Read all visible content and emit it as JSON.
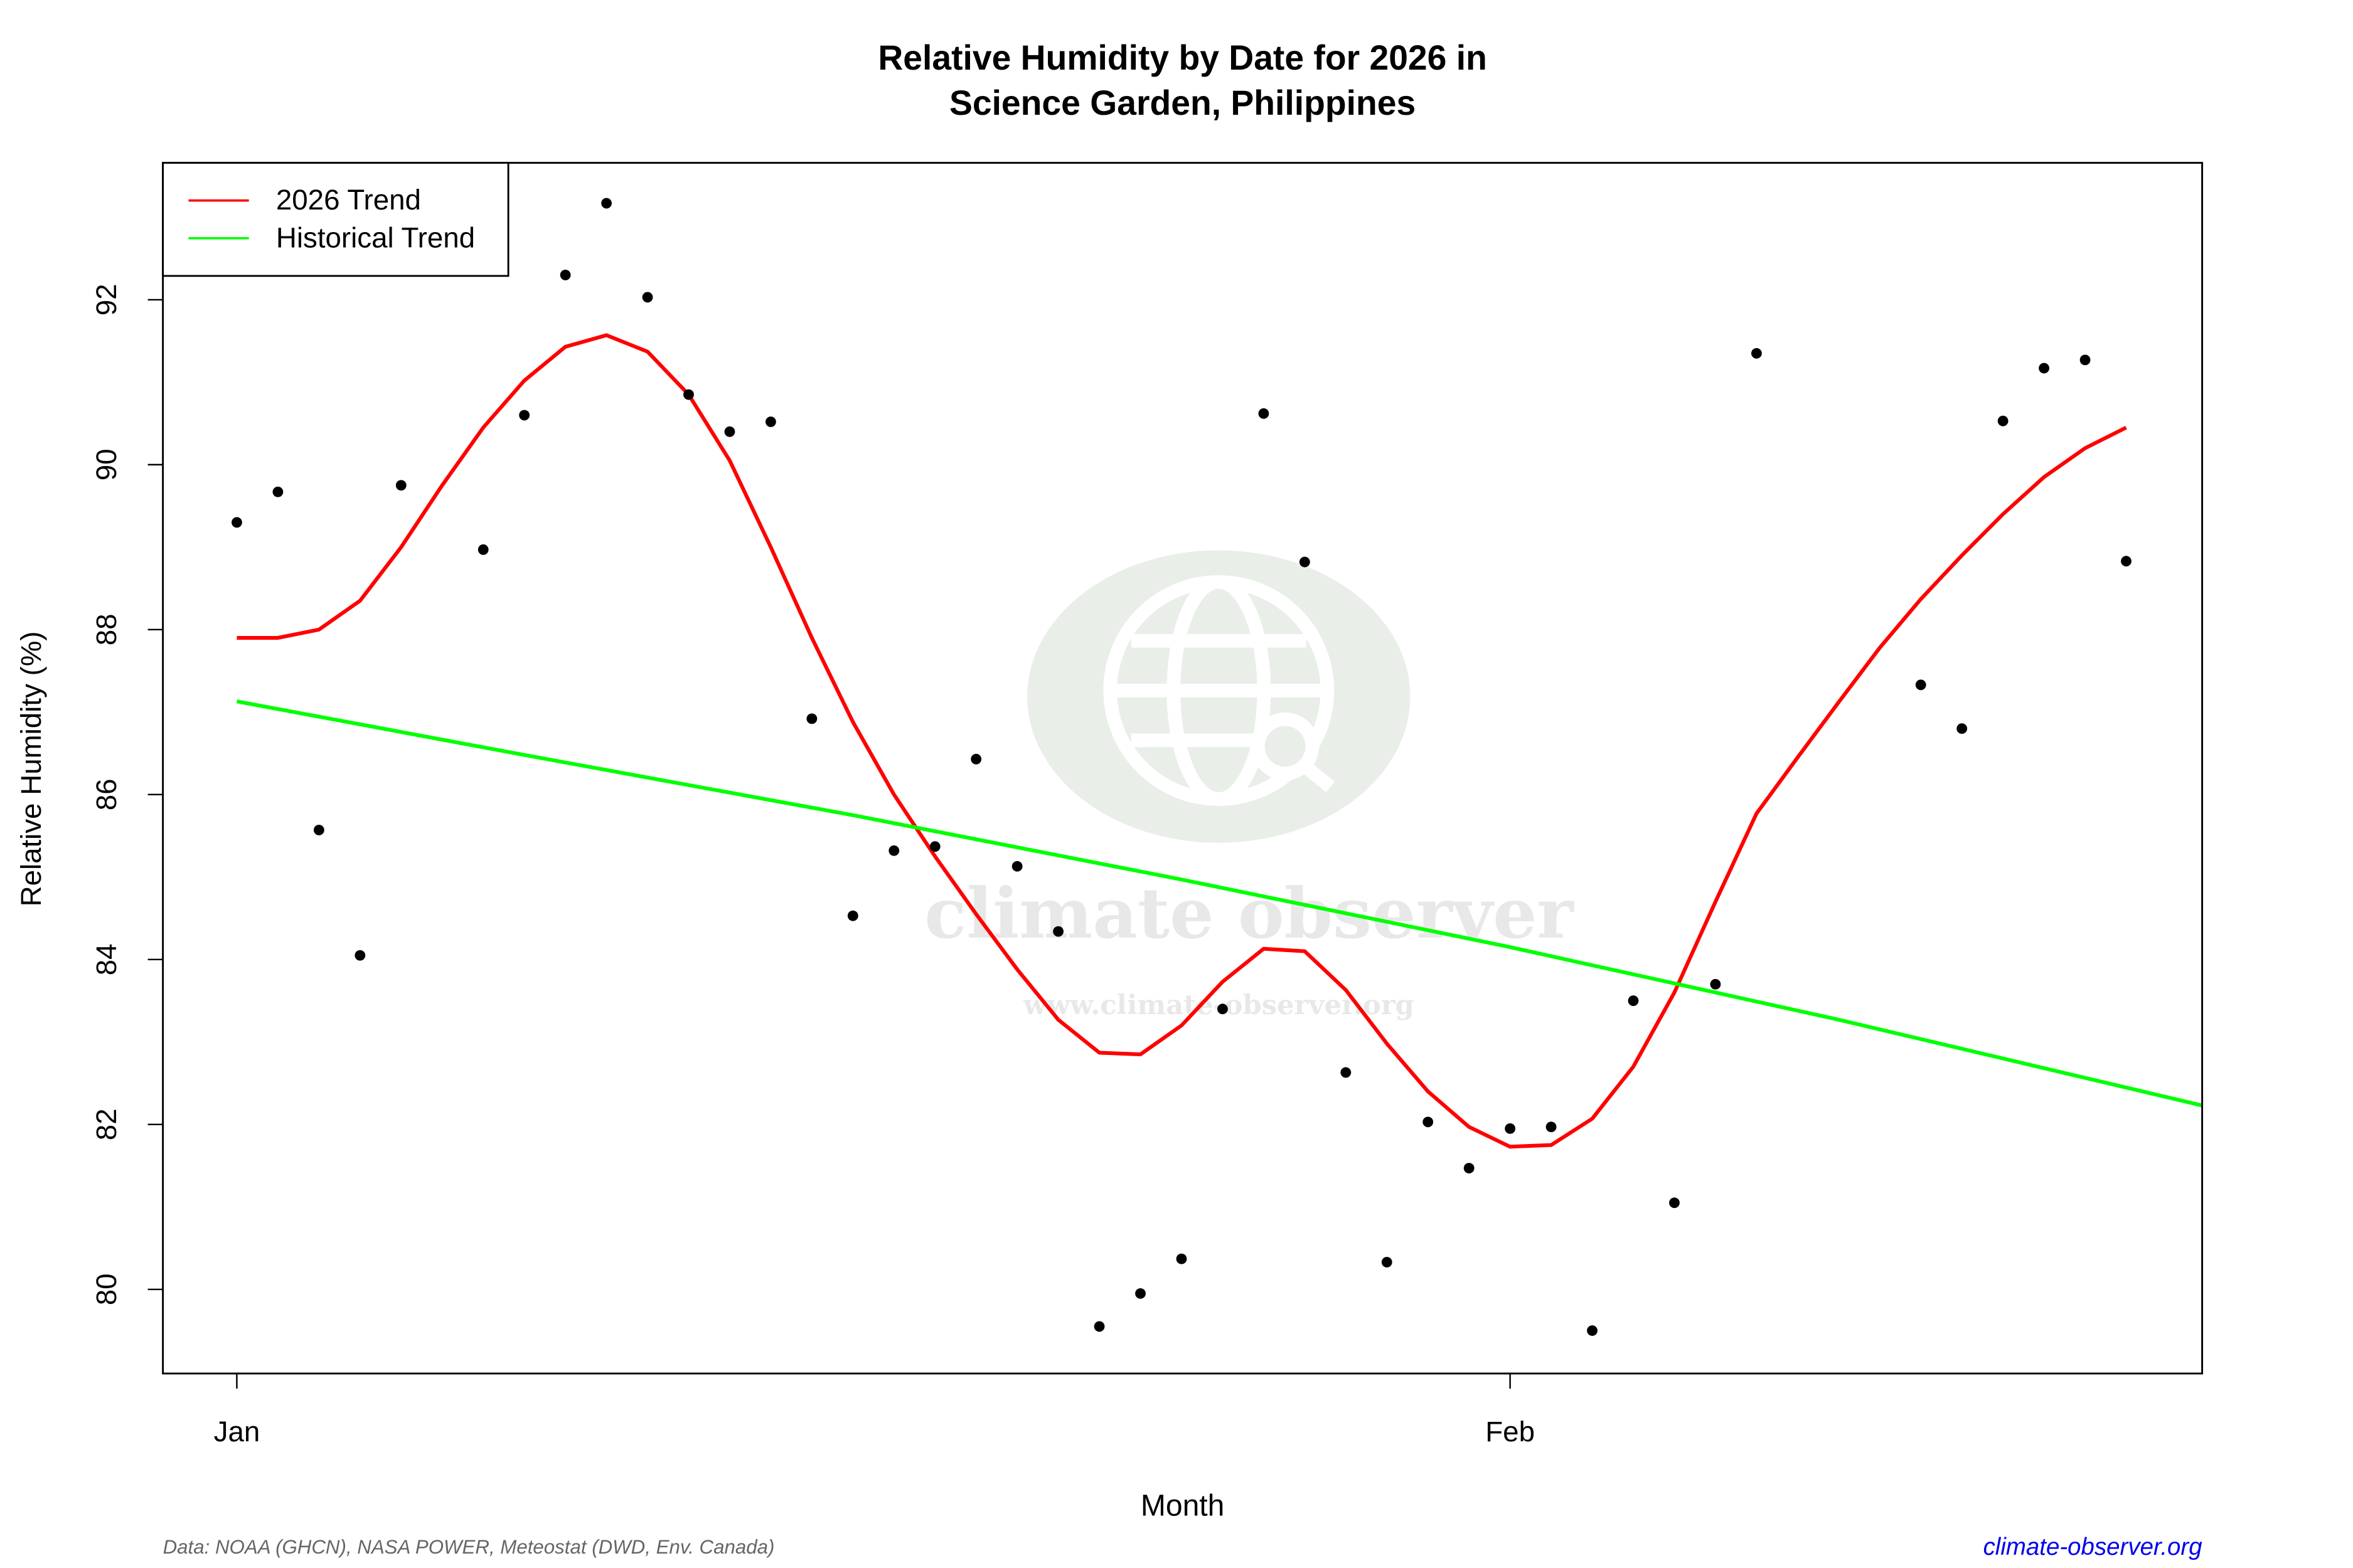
{
  "chart_data": {
    "type": "line",
    "title": [
      "Relative Humidity by Date for 2026 in",
      "Science Garden, Philippines"
    ],
    "x_label": "Month",
    "y_label": "Relative Humidity (%)",
    "xlim": [
      -0.8,
      48.85
    ],
    "ylim": [
      78.98,
      93.66
    ],
    "xticks": [
      {
        "value": 1,
        "label": "Jan"
      },
      {
        "value": 32,
        "label": "Feb"
      }
    ],
    "yticks": [
      80,
      82,
      84,
      86,
      88,
      90,
      92
    ],
    "legend_position": "top-left",
    "points": {
      "color": "#000000",
      "x": [
        1,
        2,
        3,
        4,
        5,
        7,
        8,
        9,
        10,
        11,
        12,
        13,
        14,
        15,
        16,
        17,
        18,
        19,
        20,
        21,
        22,
        23,
        24,
        25,
        26,
        27,
        28,
        29,
        30,
        31,
        32,
        33,
        34,
        35,
        36,
        37,
        38,
        42,
        43,
        44,
        45,
        46,
        47
      ],
      "values": [
        89.3,
        89.67,
        85.57,
        84.05,
        89.75,
        88.97,
        90.6,
        92.3,
        93.17,
        92.03,
        90.85,
        90.4,
        90.52,
        86.92,
        84.53,
        85.32,
        85.37,
        86.43,
        85.13,
        84.34,
        79.55,
        79.95,
        80.37,
        83.4,
        90.62,
        88.82,
        82.63,
        80.33,
        82.03,
        81.47,
        81.95,
        81.97,
        79.5,
        83.5,
        81.05,
        83.7,
        91.35,
        87.33,
        86.8,
        90.53,
        91.17,
        91.27,
        88.83
      ]
    },
    "series": [
      {
        "name": "2026 Trend",
        "color": "#ff0000",
        "x": [
          1,
          2,
          3,
          4,
          5,
          6,
          7,
          8,
          9,
          10,
          11,
          12,
          13,
          14,
          15,
          16,
          17,
          18,
          19,
          20,
          21,
          22,
          23,
          24,
          25,
          26,
          27,
          28,
          29,
          30,
          31,
          32,
          33,
          34,
          35,
          36,
          37,
          38,
          39,
          40,
          41,
          42,
          43,
          44,
          45,
          46,
          47
        ],
        "values": [
          87.9,
          87.9,
          88.0,
          88.35,
          89.0,
          89.75,
          90.45,
          91.02,
          91.43,
          91.57,
          91.37,
          90.85,
          90.05,
          89.0,
          87.9,
          86.88,
          86.0,
          85.25,
          84.55,
          83.88,
          83.27,
          82.87,
          82.85,
          83.2,
          83.73,
          84.13,
          84.1,
          83.63,
          82.98,
          82.4,
          81.97,
          81.73,
          81.75,
          82.07,
          82.7,
          83.6,
          84.7,
          85.77,
          86.45,
          87.12,
          87.78,
          88.37,
          88.9,
          89.4,
          89.85,
          90.2,
          90.45
        ]
      },
      {
        "name": "Historical Trend",
        "color": "#00ff00",
        "x": [
          1,
          8,
          16,
          24,
          32,
          40,
          48.85
        ],
        "values": [
          87.13,
          86.48,
          85.75,
          84.97,
          84.15,
          83.27,
          82.23
        ]
      }
    ],
    "watermark": {
      "name": "climate observer",
      "url": "www.climate-observer.org"
    },
    "source": "Data: NOAA (GHCN), NASA POWER, Meteostat (DWD, Env. Canada)",
    "site": "climate-observer.org"
  }
}
